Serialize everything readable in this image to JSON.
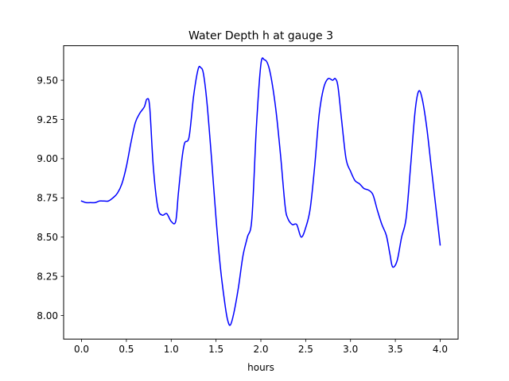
{
  "chart_data": {
    "type": "line",
    "title": "Water Depth h at gauge 3",
    "xlabel": "hours",
    "ylabel": "",
    "xlim": [
      -0.2,
      4.2
    ],
    "ylim": [
      7.85,
      9.72
    ],
    "xticks": [
      0.0,
      0.5,
      1.0,
      1.5,
      2.0,
      2.5,
      3.0,
      3.5,
      4.0
    ],
    "xtick_labels": [
      "0.0",
      "0.5",
      "1.0",
      "1.5",
      "2.0",
      "2.5",
      "3.0",
      "3.5",
      "4.0"
    ],
    "yticks": [
      8.0,
      8.25,
      8.5,
      8.75,
      9.0,
      9.25,
      9.5
    ],
    "ytick_labels": [
      "8.00",
      "8.25",
      "8.50",
      "8.75",
      "9.00",
      "9.25",
      "9.50"
    ],
    "grid": false,
    "series": [
      {
        "color": "#0000ff",
        "x": [
          0.0,
          0.05,
          0.1,
          0.15,
          0.2,
          0.25,
          0.3,
          0.35,
          0.4,
          0.45,
          0.5,
          0.55,
          0.6,
          0.65,
          0.7,
          0.73,
          0.76,
          0.8,
          0.85,
          0.9,
          0.95,
          1.0,
          1.05,
          1.08,
          1.12,
          1.15,
          1.2,
          1.25,
          1.3,
          1.33,
          1.36,
          1.4,
          1.45,
          1.5,
          1.55,
          1.6,
          1.63,
          1.66,
          1.7,
          1.75,
          1.8,
          1.85,
          1.9,
          1.95,
          2.0,
          2.04,
          2.08,
          2.12,
          2.17,
          2.22,
          2.27,
          2.3,
          2.35,
          2.4,
          2.45,
          2.5,
          2.55,
          2.6,
          2.65,
          2.7,
          2.75,
          2.8,
          2.83,
          2.86,
          2.9,
          2.95,
          3.0,
          3.05,
          3.1,
          3.15,
          3.2,
          3.25,
          3.3,
          3.35,
          3.4,
          3.44,
          3.47,
          3.52,
          3.57,
          3.62,
          3.67,
          3.72,
          3.76,
          3.8,
          3.85,
          3.9,
          3.95,
          4.0
        ],
        "y": [
          8.73,
          8.72,
          8.72,
          8.72,
          8.73,
          8.73,
          8.73,
          8.75,
          8.78,
          8.84,
          8.95,
          9.1,
          9.23,
          9.29,
          9.33,
          9.38,
          9.33,
          8.95,
          8.69,
          8.64,
          8.65,
          8.6,
          8.6,
          8.78,
          9.0,
          9.1,
          9.14,
          9.4,
          9.57,
          9.58,
          9.54,
          9.35,
          9.0,
          8.62,
          8.3,
          8.07,
          7.97,
          7.94,
          8.02,
          8.18,
          8.38,
          8.5,
          8.62,
          9.2,
          9.6,
          9.63,
          9.6,
          9.5,
          9.3,
          9.02,
          8.7,
          8.62,
          8.58,
          8.58,
          8.5,
          8.56,
          8.68,
          8.95,
          9.28,
          9.45,
          9.51,
          9.5,
          9.51,
          9.46,
          9.25,
          9.0,
          8.92,
          8.86,
          8.84,
          8.81,
          8.8,
          8.77,
          8.67,
          8.58,
          8.51,
          8.39,
          8.31,
          8.35,
          8.5,
          8.62,
          8.95,
          9.3,
          9.43,
          9.38,
          9.2,
          8.95,
          8.7,
          8.45
        ]
      }
    ]
  }
}
